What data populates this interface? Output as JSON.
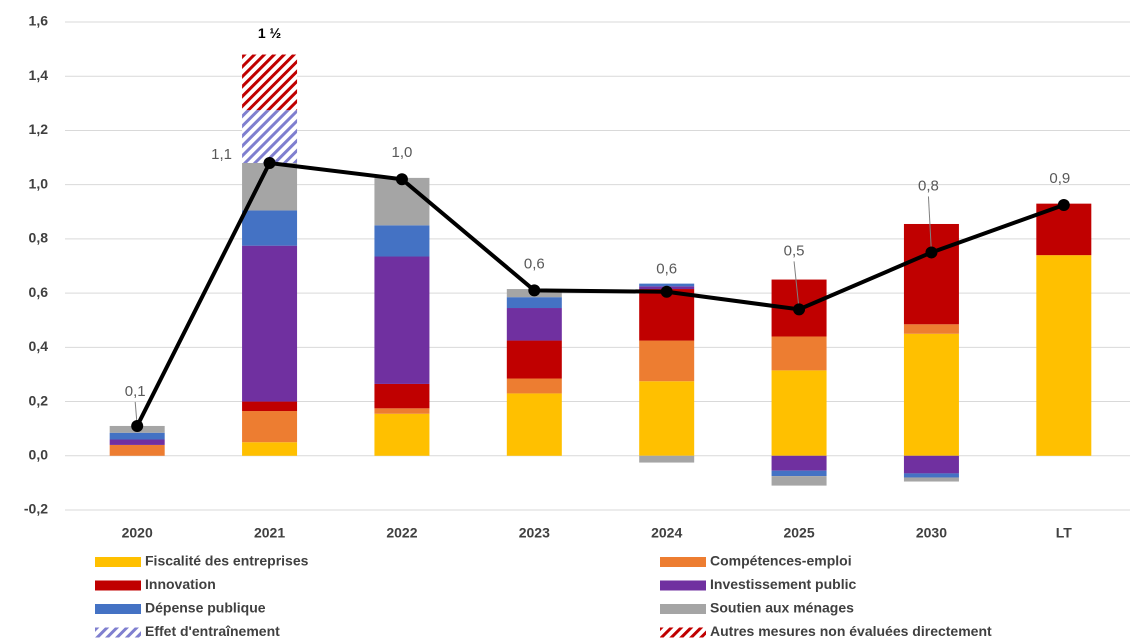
{
  "chart_data": {
    "type": "bar",
    "stacked": true,
    "categories": [
      "2020",
      "2021",
      "2022",
      "2023",
      "2024",
      "2025",
      "2030",
      "LT"
    ],
    "ylim": [
      -0.2,
      1.6
    ],
    "yticks": [
      {
        "value": -0.2,
        "label": "-0,2"
      },
      {
        "value": 0,
        "label": "0,0"
      },
      {
        "value": 0.2,
        "label": "0,2"
      },
      {
        "value": 0.4,
        "label": "0,4"
      },
      {
        "value": 0.6,
        "label": "0,6"
      },
      {
        "value": 0.8,
        "label": "0,8"
      },
      {
        "value": 1.0,
        "label": "1,0"
      },
      {
        "value": 1.2,
        "label": "1,2"
      },
      {
        "value": 1.4,
        "label": "1,4"
      },
      {
        "value": 1.6,
        "label": "1,6"
      }
    ],
    "grid": true,
    "series": [
      {
        "name": "Fiscalité des entreprises",
        "color": "#ffc000",
        "values": [
          0,
          0.05,
          0.155,
          0.23,
          0.275,
          0.315,
          0.45,
          0.74
        ]
      },
      {
        "name": "Compétences-emploi",
        "color": "#ed7d31",
        "values": [
          0.04,
          0.115,
          0.02,
          0.055,
          0.15,
          0.125,
          0.035,
          0
        ]
      },
      {
        "name": "Innovation",
        "color": "#c00000",
        "values": [
          0,
          0.035,
          0.09,
          0.14,
          0.19,
          0.21,
          0.37,
          0.19
        ]
      },
      {
        "name": "Investissement public",
        "color": "#7030a0",
        "values": [
          0.02,
          0.575,
          0.47,
          0.12,
          0.01,
          -0.055,
          -0.065,
          0
        ]
      },
      {
        "name": "Dépense publique",
        "color": "#4472c4",
        "values": [
          0.025,
          0.13,
          0.115,
          0.04,
          0.01,
          -0.02,
          -0.015,
          0
        ]
      },
      {
        "name": "Soutien aux ménages",
        "color": "#a5a5a5",
        "values": [
          0.025,
          0.175,
          0.175,
          0.03,
          -0.025,
          -0.035,
          -0.015,
          0
        ]
      },
      {
        "name": "Effet d'entraînement",
        "color": "#7f7fcf",
        "hatch": true,
        "values": [
          0,
          0.195,
          0,
          0,
          0,
          0,
          0,
          0
        ]
      },
      {
        "name": "Autres mesures non évaluées directement",
        "color": "#c00000",
        "hatch": true,
        "values": [
          0,
          0.205,
          0,
          0,
          0,
          0,
          0,
          0
        ]
      }
    ],
    "line": {
      "color": "#000000",
      "values": [
        0.11,
        1.08,
        1.02,
        0.61,
        0.605,
        0.54,
        0.75,
        0.925
      ],
      "value_labels": [
        "0,1",
        "1,1",
        "1,0",
        "0,6",
        "0,6",
        "0,5",
        "0,8",
        "0,9"
      ]
    },
    "annotations": [
      {
        "text": "1 ½",
        "category": 1,
        "value": 1.48
      }
    ]
  }
}
